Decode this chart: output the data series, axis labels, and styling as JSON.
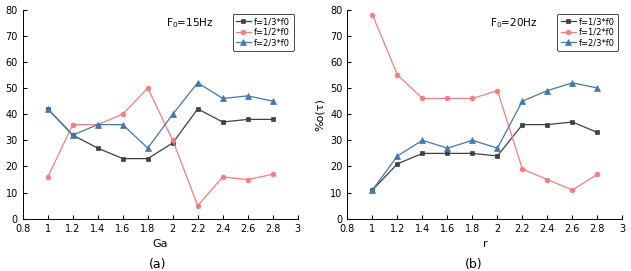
{
  "x": [
    1.0,
    1.2,
    1.4,
    1.6,
    1.8,
    2.0,
    2.2,
    2.4,
    2.6,
    2.8
  ],
  "chart_a": {
    "title": "F$_0$=15Hz",
    "xlabel": "Ga",
    "f13": [
      42,
      32,
      27,
      23,
      23,
      29,
      42,
      37,
      38,
      38
    ],
    "f12": [
      16,
      36,
      36,
      40,
      50,
      30,
      5,
      16,
      15,
      17
    ],
    "f23": [
      42,
      32,
      36,
      36,
      27,
      40,
      52,
      46,
      47,
      45
    ],
    "label_x": "(a)"
  },
  "chart_b": {
    "title": "F$_0$=20Hz",
    "xlabel": "r",
    "f13": [
      11,
      21,
      25,
      25,
      25,
      24,
      36,
      36,
      37,
      33
    ],
    "f12": [
      78,
      55,
      46,
      46,
      46,
      49,
      19,
      15,
      11,
      17
    ],
    "f23": [
      11,
      24,
      30,
      27,
      30,
      27,
      45,
      49,
      52,
      50
    ],
    "label_x": "(b)"
  },
  "xlim": [
    0.8,
    3.0
  ],
  "ylim": [
    0,
    80
  ],
  "xticks": [
    0.8,
    1.0,
    1.2,
    1.4,
    1.6,
    1.8,
    2.0,
    2.2,
    2.4,
    2.6,
    2.8,
    3.0
  ],
  "yticks": [
    0,
    10,
    20,
    30,
    40,
    50,
    60,
    70,
    80
  ],
  "color_f13": "#404040",
  "color_f12": "#f08080",
  "color_f23": "#4477aa",
  "legend_f13": "f=1/3*f0",
  "legend_f12": "f=1/2*f0",
  "legend_f23": "f=2/3*f0",
  "ylabel": "%o(τ)"
}
